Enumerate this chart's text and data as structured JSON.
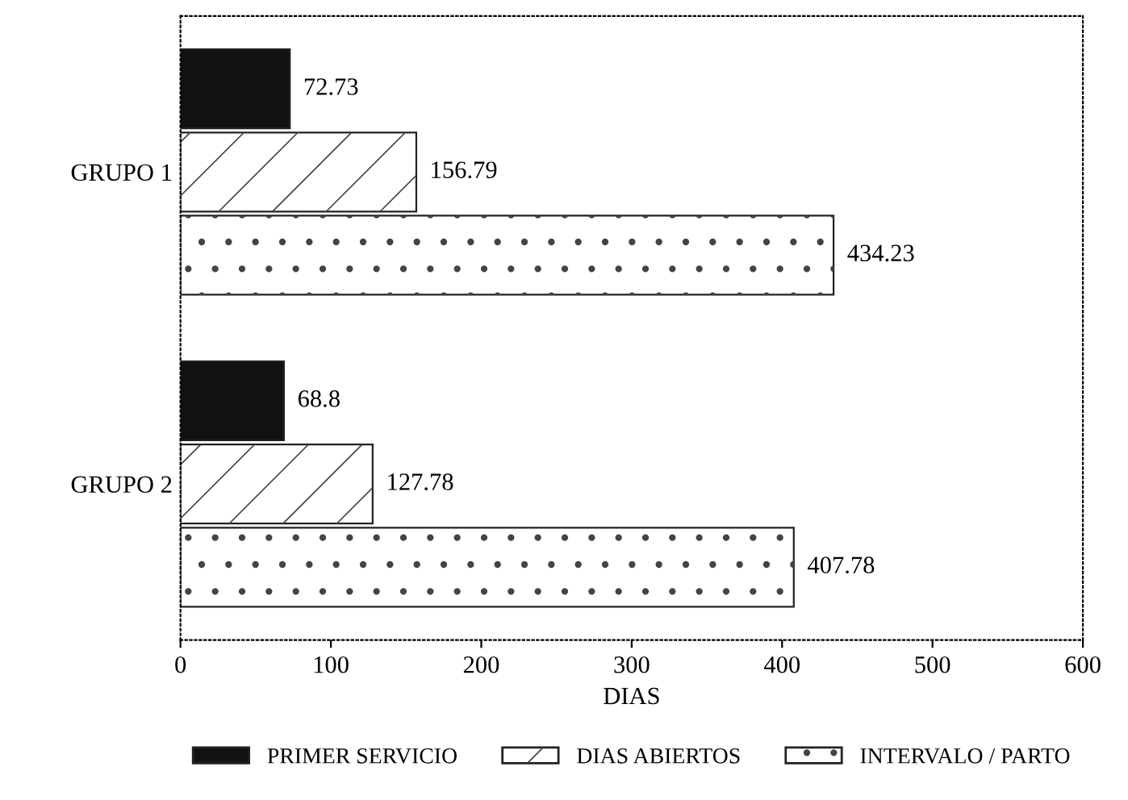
{
  "chart_data": {
    "type": "bar",
    "orientation": "horizontal",
    "xlabel": "DIAS",
    "categories": [
      "GRUPO 1",
      "GRUPO 2"
    ],
    "series": [
      {
        "name": "PRIMER SERVICIO",
        "color": "#111111",
        "values": [
          72.73,
          68.8
        ]
      },
      {
        "name": "DIAS ABIERTOS",
        "color": "#ffffff",
        "values": [
          156.79,
          127.78
        ]
      },
      {
        "name": "INTERVALO / PARTO",
        "color": "#ffffff",
        "values": [
          434.23,
          407.78
        ]
      }
    ],
    "xlim": [
      0,
      600
    ],
    "xticks": [
      0,
      100,
      200,
      300,
      400,
      500,
      600
    ],
    "data_labels": true,
    "legend": "bottom",
    "grid": false
  }
}
